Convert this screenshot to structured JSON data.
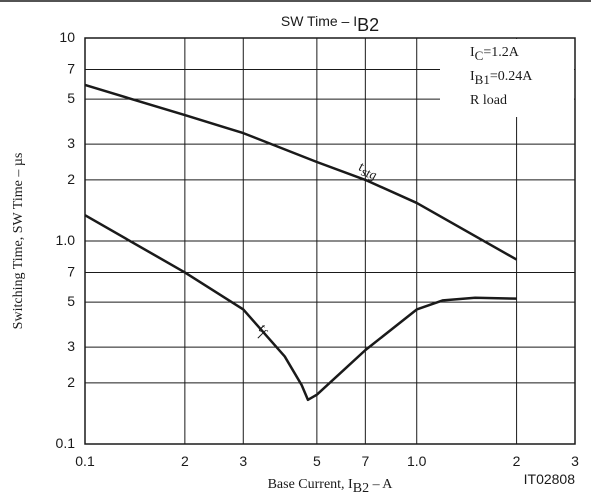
{
  "chart_data": {
    "type": "line",
    "title": {
      "main": "SW Time  –  I",
      "sub": "B2"
    },
    "xlabel": {
      "main": "Base Current, I",
      "sub": "B2",
      "rest": "  –  A"
    },
    "ylabel": "Switching Time, SW Time  –  µs",
    "code": "IT02808",
    "xscale": "log",
    "yscale": "log",
    "grid": true,
    "xlim": [
      0.1,
      3
    ],
    "ylim": [
      0.1,
      10
    ],
    "xticks": [
      0.1,
      {
        "value": 0.2,
        "label": "2"
      },
      {
        "value": 0.3,
        "label": "3"
      },
      {
        "value": 0.5,
        "label": "5"
      },
      {
        "value": 0.7,
        "label": "7"
      },
      {
        "value": 1,
        "label": "1.0"
      },
      2,
      3
    ],
    "yticks": [
      {
        "value": 0.1,
        "label": "0.1"
      },
      {
        "value": 0.2,
        "label": "2"
      },
      {
        "value": 0.3,
        "label": "3"
      },
      {
        "value": 0.5,
        "label": "5"
      },
      {
        "value": 0.7,
        "label": "7"
      },
      {
        "value": 1,
        "label": "1.0"
      },
      2,
      3,
      5,
      7,
      10
    ],
    "annotation": [
      {
        "main": "I",
        "sub": "C",
        "rest": "=1.2A"
      },
      {
        "main": "I",
        "sub": "B1",
        "rest": "=0.24A"
      },
      {
        "main": "R load",
        "sub": "",
        "rest": ""
      }
    ],
    "series": [
      {
        "label": {
          "main": "t",
          "sub": "stg"
        },
        "color": "#1a1a1a",
        "x": [
          0.1,
          0.2,
          0.3,
          0.5,
          0.7,
          1,
          2
        ],
        "values": [
          5.87,
          4.17,
          3.4,
          2.45,
          2.0,
          1.54,
          0.81
        ]
      },
      {
        "label": {
          "main": "t",
          "sub": "f"
        },
        "color": "#1a1a1a",
        "x": [
          0.1,
          0.2,
          0.3,
          0.4,
          0.45,
          0.47,
          0.5,
          0.6,
          0.7,
          1,
          1.2,
          1.5,
          2
        ],
        "values": [
          1.34,
          0.7,
          0.46,
          0.27,
          0.195,
          0.165,
          0.175,
          0.23,
          0.29,
          0.46,
          0.51,
          0.525,
          0.52
        ]
      }
    ]
  }
}
